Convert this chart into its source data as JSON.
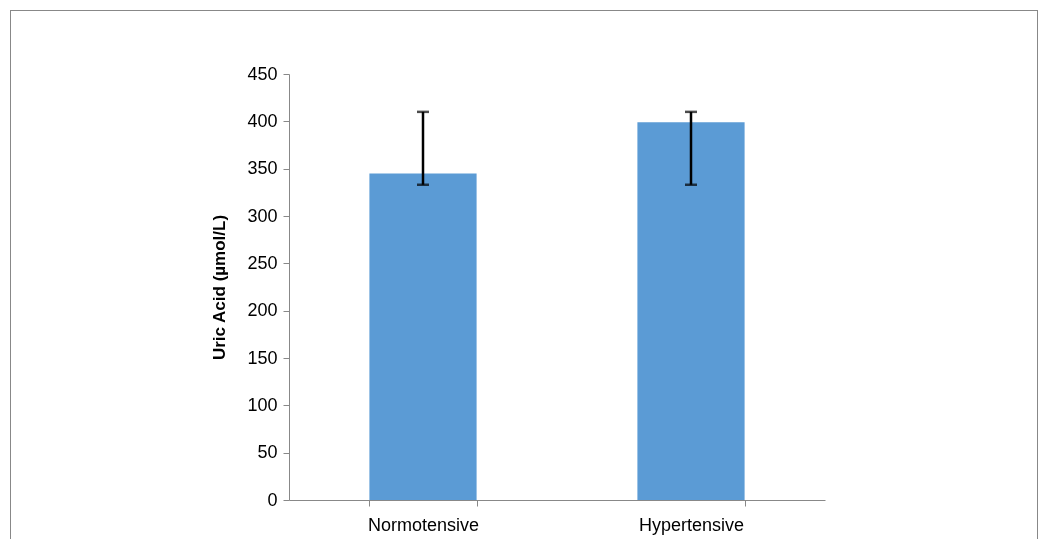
{
  "chart_data": {
    "type": "bar",
    "ylabel": "Uric Acid (µmol/L)",
    "categories": [
      "Normotensive",
      "Hypertensive"
    ],
    "values": [
      345,
      399
    ],
    "color": "#5b9bd5",
    "errors": [
      [
        333,
        410
      ],
      [
        333,
        410
      ]
    ],
    "ylim": [
      0,
      450
    ],
    "yticks": [
      0,
      50,
      100,
      150,
      200,
      250,
      300,
      350,
      400,
      450
    ],
    "grid": false
  }
}
